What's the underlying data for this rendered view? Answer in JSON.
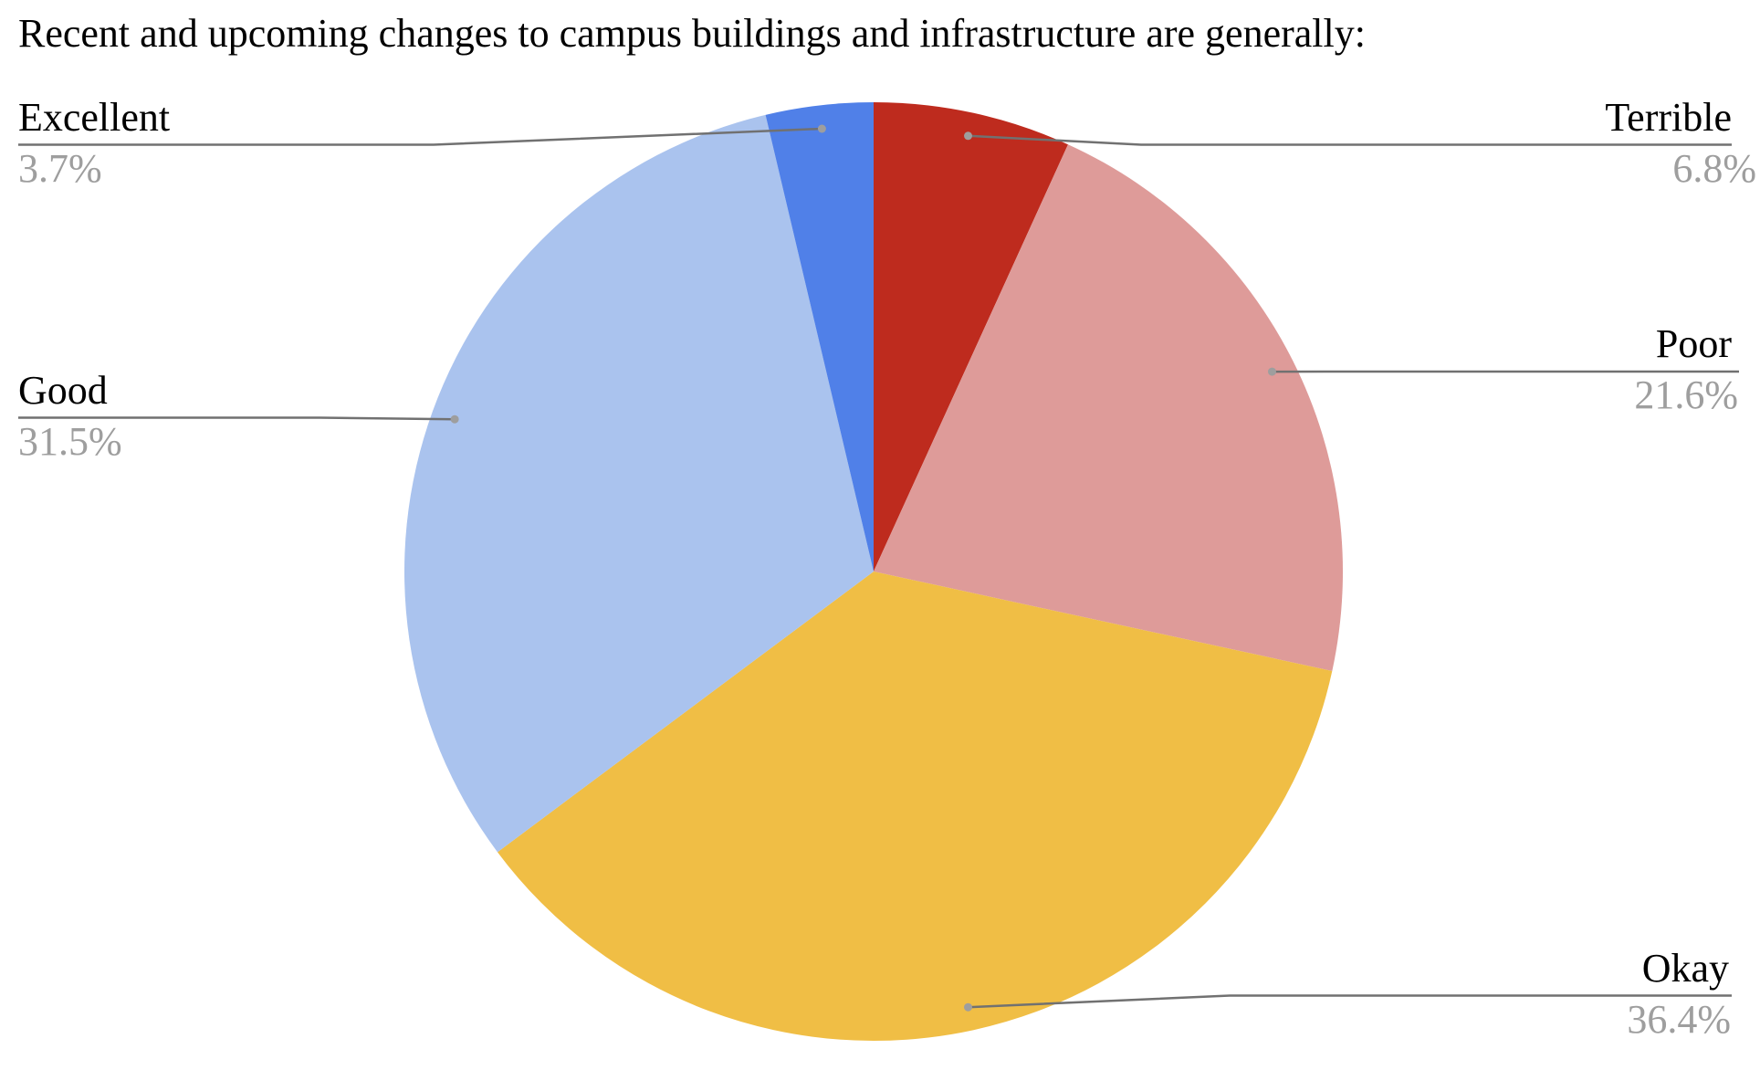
{
  "chart_data": {
    "type": "pie",
    "title": "Recent and upcoming changes to campus buildings and infrastructure are generally:",
    "direction": "clockwise",
    "start_angle_deg": 0,
    "legend_position": "outside-callouts",
    "background": "#FFFFFF",
    "label_color": "#000000",
    "pct_color": "#9E9E9E",
    "line_color": "#717171",
    "dot_color": "#9E9E9E",
    "slices": [
      {
        "label": "Terrible",
        "value": 6.8,
        "display": "6.8%",
        "color": "#BE2B1E"
      },
      {
        "label": "Poor",
        "value": 21.6,
        "display": "21.6%",
        "color": "#DE9B99"
      },
      {
        "label": "Okay",
        "value": 36.4,
        "display": "36.4%",
        "color": "#F0BE45"
      },
      {
        "label": "Good",
        "value": 31.5,
        "display": "31.5%",
        "color": "#AAC3EE"
      },
      {
        "label": "Excellent",
        "value": 3.7,
        "display": "3.7%",
        "color": "#5080E8"
      }
    ]
  }
}
